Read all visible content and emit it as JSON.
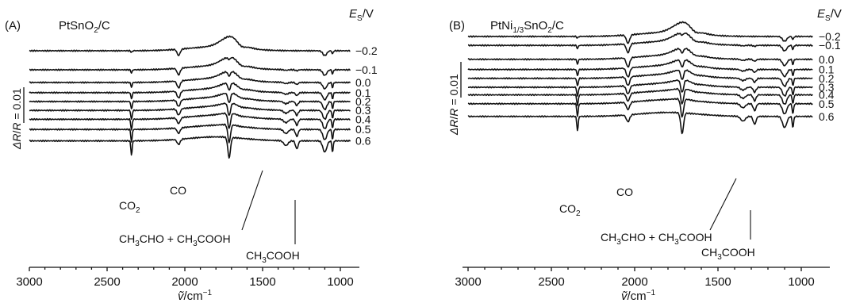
{
  "chart_data": [
    {
      "type": "line",
      "panel_label": "(A)",
      "title": "PtSnO2/C",
      "x_label": "ṽ/cm⁻¹",
      "x_ticks": [
        3000,
        2500,
        2000,
        1500,
        1000
      ],
      "x_range": [
        3000,
        900
      ],
      "x_reversed": true,
      "potential_label": "E_S/V",
      "scale_bar_label": "ΔR/R = 0.01",
      "series": [
        {
          "name": "−0.2",
          "offset": 0.0
        },
        {
          "name": "−0.1",
          "offset": 0.75
        },
        {
          "name": "0.0",
          "offset": 1.25
        },
        {
          "name": "0.1",
          "offset": 1.65
        },
        {
          "name": "0.2",
          "offset": 2.0
        },
        {
          "name": "0.3",
          "offset": 2.35
        },
        {
          "name": "0.4",
          "offset": 2.7
        },
        {
          "name": "0.5",
          "offset": 3.1
        },
        {
          "name": "0.6",
          "offset": 3.55
        }
      ],
      "bands": [
        {
          "name": "CO2",
          "wavenumber": 2343
        },
        {
          "name": "CO",
          "wavenumber": 2040
        },
        {
          "name": "CH3CHO + CH3COOH",
          "wavenumber": 1715
        },
        {
          "name": "CH3COOH",
          "wavenumber": 1280
        }
      ]
    },
    {
      "type": "line",
      "panel_label": "(B)",
      "title": "PtNi1/3SnO2/C",
      "x_label": "ṽ/cm⁻¹",
      "x_ticks": [
        3000,
        2500,
        2000,
        1500,
        1000
      ],
      "x_range": [
        3000,
        900
      ],
      "x_reversed": true,
      "potential_label": "E_S/V",
      "scale_bar_label": "ΔR/R = 0.01",
      "series": [
        {
          "name": "−0.2",
          "offset": 0.0
        },
        {
          "name": "−0.1",
          "offset": 0.35
        },
        {
          "name": "0.0",
          "offset": 0.9
        },
        {
          "name": "0.1",
          "offset": 1.3
        },
        {
          "name": "0.2",
          "offset": 1.65
        },
        {
          "name": "0.3",
          "offset": 2.0
        },
        {
          "name": "0.4",
          "offset": 2.3
        },
        {
          "name": "0.5",
          "offset": 2.65
        },
        {
          "name": "0.6",
          "offset": 3.15
        }
      ],
      "bands": [
        {
          "name": "CO2",
          "wavenumber": 2343
        },
        {
          "name": "CO",
          "wavenumber": 2040
        },
        {
          "name": "CH3CHO + CH3COOH",
          "wavenumber": 1715
        },
        {
          "name": "CH3COOH",
          "wavenumber": 1280
        }
      ]
    }
  ]
}
